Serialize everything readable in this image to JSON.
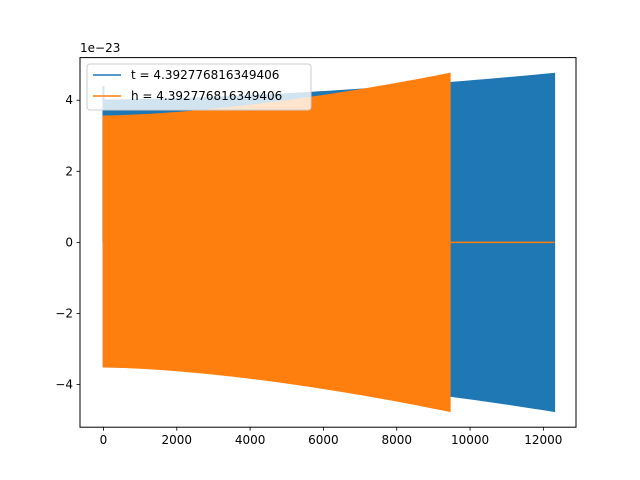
{
  "chart_data": {
    "type": "line",
    "title": "",
    "xlabel": "",
    "ylabel": "",
    "y_offset_text": "1e−23",
    "y_scale_exponent": -23,
    "xlim": [
      -640,
      12890
    ],
    "ylim": [
      -5.2,
      5.2
    ],
    "x_ticks": [
      0,
      2000,
      4000,
      6000,
      8000,
      10000,
      12000
    ],
    "x_tick_labels": [
      "0",
      "2000",
      "4000",
      "6000",
      "8000",
      "10000",
      "12000"
    ],
    "y_ticks": [
      -4,
      -2,
      0,
      2,
      4
    ],
    "y_tick_labels": [
      "−4",
      "−2",
      "0",
      "2",
      "4"
    ],
    "grid": false,
    "legend_position": "top-left",
    "series": [
      {
        "name": "t = 4.392776816349406",
        "color": "#1f77b4",
        "style": "dense-oscillation",
        "segments": [
          {
            "x": [
              0,
              12300
            ],
            "envelope_upper": [
              4.0,
              4.75
            ],
            "envelope_lower": [
              -3.5,
              -4.75
            ],
            "initial_spike": 4.4
          }
        ]
      },
      {
        "name": "h = 4.392776816349406",
        "color": "#ff7f0e",
        "style": "dense-oscillation",
        "segments": [
          {
            "x": [
              0,
              9450
            ],
            "envelope_upper": [
              3.55,
              4.75
            ],
            "envelope_lower": [
              -3.5,
              -4.75
            ]
          },
          {
            "x": [
              9450,
              12300
            ],
            "constant": 0
          }
        ]
      }
    ]
  }
}
